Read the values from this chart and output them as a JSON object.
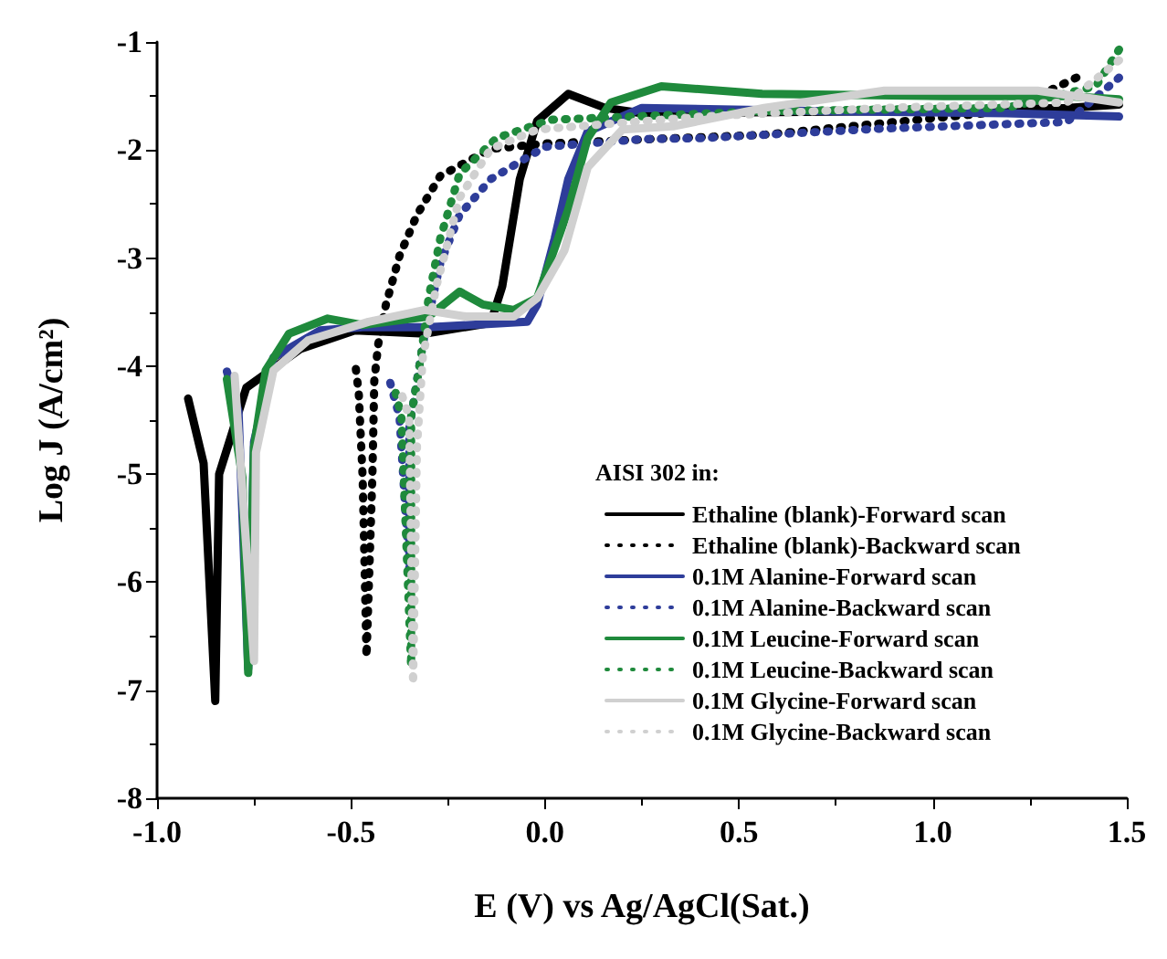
{
  "chart_data": {
    "type": "line",
    "xlabel": "E (V) vs Ag/AgCl(Sat.)",
    "ylabel": "Log J (A/cm²)",
    "legend_title": "AISI 302 in:",
    "legend": "bottom right",
    "grid": false,
    "marker": "none",
    "xlim": [
      -1.0,
      1.5
    ],
    "xticks": [
      {
        "value": -1,
        "label": "-1.0"
      },
      {
        "value": -0.5,
        "label": "-0.5"
      },
      {
        "value": 0,
        "label": "0.0"
      },
      {
        "value": 0.5,
        "label": "0.5"
      },
      {
        "value": 1,
        "label": "1.0"
      },
      {
        "value": 1.5,
        "label": "1.5"
      }
    ],
    "ylim": [
      -8,
      -1
    ],
    "yticks": [
      -8,
      -7,
      -6,
      -5,
      -4,
      -3,
      -2,
      -1
    ],
    "series": [
      {
        "name": "Ethaline (blank)-Forward scan",
        "color": "#000000",
        "line_style": "solid",
        "x": [
          -0.92,
          -0.88,
          -0.85,
          -0.84,
          -0.77,
          -0.63,
          -0.49,
          -0.31,
          -0.14,
          -0.11,
          -0.065,
          -0.02,
          0.06,
          0.155,
          0.25,
          0.875,
          1.345,
          1.48
        ],
        "values": [
          -4.3,
          -4.9,
          -7.1,
          -5.0,
          -4.2,
          -3.84,
          -3.67,
          -3.7,
          -3.6,
          -3.26,
          -2.27,
          -1.73,
          -1.48,
          -1.61,
          -1.66,
          -1.64,
          -1.61,
          -1.58
        ]
      },
      {
        "name": "Ethaline (blank)-Backward scan",
        "color": "#000000",
        "line_style": "dotted",
        "x": [
          1.37,
          1.19,
          0.56,
          0.33,
          0.0,
          -0.14,
          -0.27,
          -0.33,
          -0.375,
          -0.41,
          -0.43,
          -0.44,
          -0.445,
          -0.46,
          -0.47,
          -0.48,
          -0.49
        ],
        "values": [
          -1.33,
          -1.64,
          -1.86,
          -1.89,
          -1.94,
          -1.99,
          -2.24,
          -2.6,
          -2.98,
          -3.43,
          -3.8,
          -4.14,
          -5.03,
          -6.69,
          -5.03,
          -4.25,
          -3.95
        ]
      },
      {
        "name": "0.1M Alanine-Forward scan",
        "color": "#2e3d9a",
        "line_style": "solid",
        "x": [
          -0.82,
          -0.79,
          -0.765,
          -0.75,
          -0.7,
          -0.58,
          -0.47,
          -0.3,
          -0.046,
          -0.02,
          0.025,
          0.06,
          0.11,
          0.25,
          0.72,
          1.19,
          1.48
        ],
        "values": [
          -4.05,
          -4.42,
          -6.8,
          -4.7,
          -3.92,
          -3.67,
          -3.64,
          -3.64,
          -3.59,
          -3.43,
          -2.82,
          -2.27,
          -1.83,
          -1.61,
          -1.64,
          -1.66,
          -1.69
        ]
      },
      {
        "name": "0.1M Alanine-Backward scan",
        "color": "#2e3d9a",
        "line_style": "dotted",
        "x": [
          1.48,
          1.345,
          0.875,
          0.405,
          0.25,
          0.0,
          -0.14,
          -0.22,
          -0.27,
          -0.3,
          -0.315,
          -0.35,
          -0.35,
          -0.375,
          -0.4
        ],
        "values": [
          -1.33,
          -1.74,
          -1.8,
          -1.89,
          -1.9,
          -1.97,
          -2.27,
          -2.6,
          -3.05,
          -3.54,
          -3.8,
          -4.58,
          -5.9,
          -4.47,
          -4.14
        ]
      },
      {
        "name": "0.1M Leucine-Forward scan",
        "color": "#1f8a3c",
        "line_style": "solid",
        "x": [
          -0.82,
          -0.78,
          -0.765,
          -0.75,
          -0.72,
          -0.66,
          -0.56,
          -0.47,
          -0.3,
          -0.22,
          -0.16,
          -0.08,
          -0.02,
          0.06,
          0.11,
          0.17,
          0.3,
          0.56,
          1.03,
          1.345,
          1.48
        ],
        "values": [
          -4.12,
          -5.03,
          -6.84,
          -4.75,
          -4.04,
          -3.7,
          -3.56,
          -3.62,
          -3.54,
          -3.31,
          -3.43,
          -3.48,
          -3.37,
          -2.55,
          -1.89,
          -1.56,
          -1.41,
          -1.48,
          -1.5,
          -1.5,
          -1.53
        ]
      },
      {
        "name": "0.1M Leucine-Backward scan",
        "color": "#1f8a3c",
        "line_style": "dotted",
        "x": [
          1.48,
          1.42,
          1.19,
          0.565,
          0.015,
          -0.125,
          -0.22,
          -0.27,
          -0.3,
          -0.32,
          -0.345,
          -0.345,
          -0.37,
          -0.39
        ],
        "values": [
          -1.07,
          -1.41,
          -1.61,
          -1.64,
          -1.72,
          -1.89,
          -2.22,
          -2.82,
          -3.37,
          -3.92,
          -4.47,
          -6.78,
          -4.47,
          -4.17
        ]
      },
      {
        "name": "0.1M Glycine-Forward scan",
        "color": "#d0d0d0",
        "line_style": "solid",
        "x": [
          -0.8,
          -0.75,
          -0.745,
          -0.7,
          -0.61,
          -0.455,
          -0.31,
          -0.205,
          -0.08,
          -0.02,
          0.05,
          0.11,
          0.2,
          0.33,
          0.565,
          0.875,
          1.27,
          1.48
        ],
        "values": [
          -4.09,
          -6.73,
          -4.8,
          -4.04,
          -3.76,
          -3.59,
          -3.48,
          -3.54,
          -3.54,
          -3.37,
          -2.93,
          -2.16,
          -1.81,
          -1.78,
          -1.61,
          -1.45,
          -1.45,
          -1.56
        ]
      },
      {
        "name": "0.1M Glycine-Backward scan",
        "color": "#d0d0d0",
        "line_style": "dotted",
        "x": [
          1.48,
          1.345,
          0.875,
          0.405,
          -0.02,
          -0.14,
          -0.22,
          -0.28,
          -0.315,
          -0.33,
          -0.34,
          -0.35,
          -0.375
        ],
        "values": [
          -1.17,
          -1.56,
          -1.61,
          -1.69,
          -1.81,
          -1.99,
          -2.44,
          -3.26,
          -3.92,
          -4.75,
          -6.94,
          -4.47,
          -4.2
        ]
      }
    ]
  }
}
